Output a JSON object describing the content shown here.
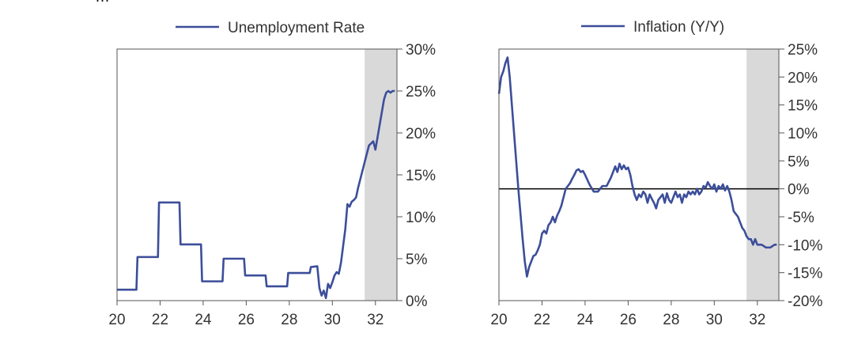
{
  "top_caption": "…",
  "chart_data": [
    {
      "type": "line",
      "title": "",
      "legend": {
        "position": "top",
        "entries": [
          "Unemployment Rate"
        ]
      },
      "xlabel": "",
      "ylabel": "",
      "xlim": [
        20,
        33
      ],
      "ylim": [
        0,
        30
      ],
      "x_ticks": [
        20,
        22,
        24,
        26,
        28,
        30,
        32
      ],
      "x_tick_labels": [
        "20",
        "22",
        "24",
        "26",
        "28",
        "30",
        "32"
      ],
      "y_ticks": [
        0,
        5,
        10,
        15,
        20,
        25,
        30
      ],
      "y_tick_labels": [
        "0%",
        "5%",
        "10%",
        "15%",
        "20%",
        "25%",
        "30%"
      ],
      "y_axis_side": "right",
      "shaded_region": {
        "x_from": 31.5,
        "x_to": 33,
        "color": "#d9d9d9"
      },
      "series": [
        {
          "name": "Unemployment Rate",
          "color": "#3c4e9a",
          "x": [
            20,
            20.9,
            20.95,
            21.9,
            21.95,
            22.9,
            22.95,
            23.9,
            23.95,
            24.9,
            24.95,
            25.9,
            25.95,
            26.9,
            26.95,
            27.9,
            27.95,
            28.95,
            29.0,
            29.3,
            29.4,
            29.5,
            29.6,
            29.7,
            29.8,
            29.9,
            30.0,
            30.1,
            30.2,
            30.3,
            30.4,
            30.5,
            30.6,
            30.7,
            30.8,
            30.9,
            31.0,
            31.1,
            31.2,
            31.3,
            31.5,
            31.7,
            31.9,
            32.0,
            32.1,
            32.2,
            32.3,
            32.4,
            32.5,
            32.6,
            32.7,
            32.8,
            32.9
          ],
          "y": [
            1.3,
            1.3,
            5.2,
            5.2,
            11.7,
            11.7,
            6.7,
            6.7,
            2.3,
            2.3,
            5.0,
            5.0,
            3.0,
            3.0,
            1.7,
            1.7,
            3.3,
            3.3,
            4.0,
            4.1,
            1.5,
            0.6,
            1.2,
            0.3,
            2.0,
            1.5,
            2.2,
            3.0,
            3.4,
            3.2,
            4.5,
            6.5,
            8.5,
            11.5,
            11.2,
            11.8,
            12.0,
            12.3,
            13.5,
            14.5,
            16.5,
            18.5,
            19.0,
            18.0,
            19.5,
            21.0,
            22.5,
            24.0,
            24.8,
            25.0,
            24.8,
            25.0,
            25.0
          ]
        }
      ]
    },
    {
      "type": "line",
      "title": "",
      "legend": {
        "position": "top",
        "entries": [
          "Inflation (Y/Y)"
        ]
      },
      "xlabel": "",
      "ylabel": "",
      "xlim": [
        20,
        33
      ],
      "ylim": [
        -20,
        25
      ],
      "x_ticks": [
        20,
        22,
        24,
        26,
        28,
        30,
        32
      ],
      "x_tick_labels": [
        "20",
        "22",
        "24",
        "26",
        "28",
        "30",
        "32"
      ],
      "y_ticks": [
        -20,
        -15,
        -10,
        -5,
        0,
        5,
        10,
        15,
        20,
        25
      ],
      "y_tick_labels": [
        "-20%",
        "-15%",
        "-10%",
        "-5%",
        "0%",
        "5%",
        "10%",
        "15%",
        "20%",
        "25%"
      ],
      "y_axis_side": "right",
      "zero_line": true,
      "shaded_region": {
        "x_from": 31.5,
        "x_to": 33,
        "color": "#d9d9d9"
      },
      "series": [
        {
          "name": "Inflation (Y/Y)",
          "color": "#3c4e9a",
          "x": [
            20.0,
            20.1,
            20.2,
            20.3,
            20.4,
            20.5,
            20.6,
            20.7,
            20.8,
            20.9,
            21.0,
            21.1,
            21.2,
            21.3,
            21.4,
            21.5,
            21.6,
            21.7,
            21.8,
            21.9,
            22.0,
            22.1,
            22.2,
            22.3,
            22.4,
            22.5,
            22.6,
            22.7,
            22.8,
            22.9,
            23.0,
            23.1,
            23.2,
            23.3,
            23.4,
            23.5,
            23.6,
            23.7,
            23.8,
            23.9,
            24.0,
            24.2,
            24.4,
            24.6,
            24.8,
            25.0,
            25.2,
            25.4,
            25.5,
            25.6,
            25.7,
            25.8,
            25.9,
            26.0,
            26.1,
            26.2,
            26.3,
            26.4,
            26.5,
            26.6,
            26.7,
            26.8,
            26.9,
            27.0,
            27.1,
            27.2,
            27.3,
            27.4,
            27.5,
            27.6,
            27.7,
            27.8,
            27.9,
            28.0,
            28.1,
            28.2,
            28.3,
            28.4,
            28.5,
            28.6,
            28.7,
            28.8,
            28.9,
            29.0,
            29.1,
            29.2,
            29.3,
            29.4,
            29.5,
            29.6,
            29.7,
            29.8,
            29.9,
            30.0,
            30.1,
            30.2,
            30.3,
            30.4,
            30.5,
            30.6,
            30.7,
            30.8,
            30.9,
            31.0,
            31.1,
            31.2,
            31.3,
            31.4,
            31.5,
            31.6,
            31.7,
            31.8,
            31.9,
            32.0,
            32.2,
            32.4,
            32.6,
            32.8,
            32.9
          ],
          "y": [
            17.0,
            20.0,
            21.0,
            22.5,
            23.5,
            20.0,
            15.0,
            10.0,
            5.0,
            0.0,
            -4.5,
            -9.0,
            -13.0,
            -15.7,
            -14.0,
            -13.0,
            -12.0,
            -11.8,
            -11.0,
            -10.0,
            -8.0,
            -7.5,
            -8.0,
            -6.5,
            -6.0,
            -5.0,
            -6.0,
            -4.8,
            -4.0,
            -3.0,
            -1.5,
            0.0,
            0.5,
            1.0,
            1.8,
            2.5,
            3.3,
            3.5,
            3.0,
            3.2,
            2.5,
            0.8,
            -0.5,
            -0.5,
            0.5,
            0.5,
            2.0,
            4.0,
            3.0,
            4.5,
            3.5,
            4.2,
            3.5,
            3.8,
            2.5,
            0.5,
            -1.0,
            -2.0,
            -1.0,
            -1.5,
            -0.5,
            -1.0,
            -2.5,
            -1.0,
            -1.8,
            -2.5,
            -3.5,
            -2.0,
            -1.5,
            -1.0,
            -2.5,
            -0.8,
            -2.0,
            -2.5,
            -1.5,
            -0.5,
            -1.5,
            -1.0,
            -2.5,
            -1.0,
            -1.5,
            -0.5,
            -1.0,
            -0.5,
            -1.0,
            0.0,
            -1.0,
            -0.5,
            0.5,
            0.2,
            1.2,
            0.5,
            0.0,
            0.8,
            -0.5,
            0.5,
            0.0,
            0.8,
            -0.3,
            0.5,
            -0.5,
            -2.0,
            -4.0,
            -4.5,
            -5.0,
            -6.0,
            -7.0,
            -7.5,
            -8.5,
            -9.0,
            -9.0,
            -10.0,
            -9.0,
            -10.0,
            -10.0,
            -10.5,
            -10.5,
            -10.0,
            -10.0
          ]
        }
      ]
    }
  ]
}
